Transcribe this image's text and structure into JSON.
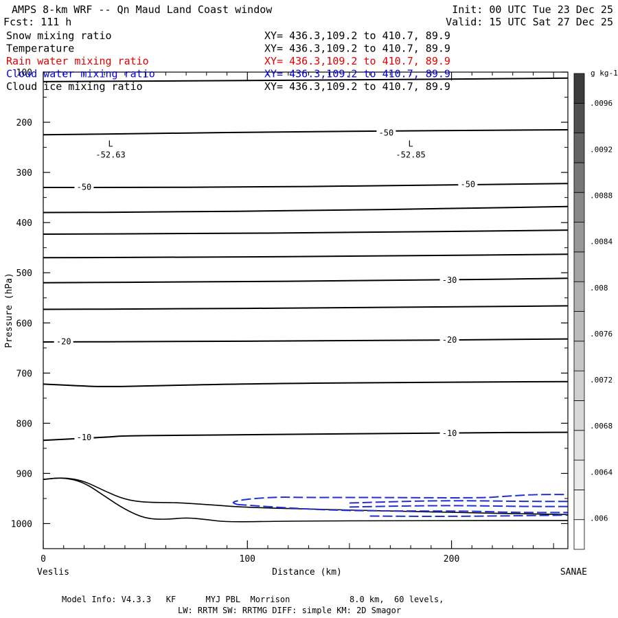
{
  "header": {
    "title": "AMPS 8-km WRF -- Qn Maud Land Coast window",
    "forecast": "Fcst:  111 h",
    "init": "Init: 00 UTC Tue 23 Dec 25",
    "valid": "Valid: 15 UTC Sat 27 Dec 25"
  },
  "fields": [
    {
      "name": "Snow mixing ratio",
      "xy": "XY= 436.3,109.2 to 410.7, 89.9",
      "color": "#000000"
    },
    {
      "name": "Temperature",
      "xy": "XY= 436.3,109.2 to 410.7, 89.9",
      "color": "#000000"
    },
    {
      "name": "Rain water mixing ratio",
      "xy": "XY= 436.3,109.2 to 410.7, 89.9",
      "color": "#e00000"
    },
    {
      "name": "Cloud water mixing ratio",
      "xy": "XY= 436.3,109.2 to 410.7, 89.9",
      "color": "#0000dd"
    },
    {
      "name": "Cloud ice mixing ratio",
      "xy": "XY= 436.3,109.2 to 410.7, 89.9",
      "color": "#000000"
    }
  ],
  "footer": {
    "line1": "Model Info: V4.3.3   KF      MYJ PBL  Morrison            8.0 km,  60 levels,",
    "line2": "LW: RRTM SW: RRTMG   DIFF: simple KM: 2D Smagor"
  },
  "chart_data": {
    "type": "contour",
    "xlabel": "Distance (km)",
    "ylabel": "Pressure (hPa)",
    "xlim": [
      0,
      257
    ],
    "ylim": [
      1050,
      100
    ],
    "x_ticks": [
      0,
      100,
      200
    ],
    "y_ticks": [
      100,
      200,
      300,
      400,
      500,
      600,
      700,
      800,
      900,
      1000
    ],
    "x_end_labels": {
      "left": "Veslis",
      "right": "SANAE"
    },
    "temperature_contours": [
      {
        "label": "",
        "points": [
          [
            0,
            119
          ],
          [
            100,
            117
          ],
          [
            200,
            114
          ],
          [
            257,
            112
          ]
        ]
      },
      {
        "label": "-50",
        "points": [
          [
            0,
            225
          ],
          [
            60,
            222
          ],
          [
            120,
            219
          ],
          [
            180,
            217
          ],
          [
            257,
            215
          ]
        ],
        "label_at": [
          168,
          221
        ]
      },
      {
        "label": "-50",
        "points": [
          [
            0,
            330
          ],
          [
            40,
            330
          ],
          [
            100,
            329
          ],
          [
            160,
            327
          ],
          [
            257,
            322
          ]
        ],
        "label_at": [
          20,
          329
        ],
        "label_at2": [
          208,
          324
        ]
      },
      {
        "label": "",
        "points": [
          [
            0,
            380
          ],
          [
            60,
            379
          ],
          [
            130,
            376
          ],
          [
            200,
            372
          ],
          [
            257,
            368
          ]
        ]
      },
      {
        "label": "",
        "points": [
          [
            0,
            423
          ],
          [
            70,
            422
          ],
          [
            150,
            420
          ],
          [
            257,
            415
          ]
        ]
      },
      {
        "label": "",
        "points": [
          [
            0,
            470
          ],
          [
            80,
            469
          ],
          [
            160,
            467
          ],
          [
            257,
            463
          ]
        ]
      },
      {
        "label": "-30",
        "points": [
          [
            0,
            520
          ],
          [
            80,
            518
          ],
          [
            160,
            516
          ],
          [
            257,
            511
          ]
        ],
        "label_at": [
          199,
          515
        ]
      },
      {
        "label": "",
        "points": [
          [
            0,
            573
          ],
          [
            60,
            572
          ],
          [
            140,
            570
          ],
          [
            257,
            566
          ]
        ]
      },
      {
        "label": "-20",
        "points": [
          [
            0,
            638
          ],
          [
            60,
            637
          ],
          [
            140,
            636
          ],
          [
            257,
            632
          ]
        ],
        "label_at": [
          10,
          637
        ],
        "label_at2": [
          199,
          634
        ]
      },
      {
        "label": "",
        "points": [
          [
            0,
            722
          ],
          [
            20,
            726
          ],
          [
            30,
            727
          ],
          [
            50,
            726
          ],
          [
            100,
            721
          ],
          [
            200,
            718
          ],
          [
            257,
            717
          ]
        ]
      },
      {
        "label": "-10",
        "points": [
          [
            0,
            834
          ],
          [
            30,
            828
          ],
          [
            40,
            825
          ],
          [
            70,
            824
          ],
          [
            100,
            823
          ],
          [
            200,
            819
          ],
          [
            257,
            818
          ]
        ],
        "label_at": [
          20,
          828
        ],
        "label_at2": [
          199,
          820
        ]
      }
    ],
    "terrain_lines": [
      {
        "points": [
          [
            0,
            912
          ],
          [
            10,
            908
          ],
          [
            20,
            915
          ],
          [
            30,
            935
          ],
          [
            40,
            952
          ],
          [
            50,
            958
          ],
          [
            65,
            958
          ],
          [
            80,
            962
          ],
          [
            100,
            968
          ],
          [
            140,
            972
          ],
          [
            200,
            978
          ],
          [
            257,
            982
          ]
        ]
      },
      {
        "points": [
          [
            0,
            912
          ],
          [
            10,
            908
          ],
          [
            20,
            918
          ],
          [
            30,
            945
          ],
          [
            40,
            972
          ],
          [
            50,
            990
          ],
          [
            60,
            992
          ],
          [
            70,
            988
          ],
          [
            80,
            992
          ],
          [
            90,
            997
          ],
          [
            120,
            995
          ],
          [
            180,
            994
          ],
          [
            257,
            994
          ]
        ]
      }
    ],
    "cloud_water_contours": [
      {
        "label": "",
        "points": [
          [
            95,
            962
          ],
          [
            92,
            957
          ],
          [
            100,
            951
          ],
          [
            115,
            947
          ],
          [
            125,
            948
          ],
          [
            165,
            948
          ],
          [
            215,
            949
          ],
          [
            225,
            946
          ],
          [
            240,
            942
          ],
          [
            257,
            942
          ]
        ]
      },
      {
        "label": "",
        "points": [
          [
            95,
            962
          ],
          [
            120,
            969
          ],
          [
            140,
            973
          ],
          [
            150,
            974
          ],
          [
            170,
            975
          ],
          [
            210,
            975
          ],
          [
            230,
            978
          ],
          [
            257,
            978
          ]
        ]
      },
      {
        "label": "",
        "points": [
          [
            150,
            959
          ],
          [
            175,
            956
          ],
          [
            200,
            954
          ],
          [
            240,
            956
          ],
          [
            257,
            956
          ]
        ]
      },
      {
        "label": "",
        "points": [
          [
            150,
            967
          ],
          [
            175,
            965
          ],
          [
            205,
            964
          ],
          [
            235,
            966
          ],
          [
            257,
            966
          ]
        ]
      },
      {
        "label": "",
        "points": [
          [
            160,
            985
          ],
          [
            200,
            986
          ],
          [
            257,
            983
          ]
        ]
      }
    ],
    "lows": [
      {
        "label": "L",
        "value": "-52.63",
        "x": 33,
        "p": 265
      },
      {
        "label": "L",
        "value": "-52.85",
        "x": 180,
        "p": 265
      }
    ],
    "colorbar": {
      "unit": "g kg-1",
      "labels": [
        ".006",
        ".0064",
        ".0068",
        ".0072",
        ".0076",
        ".008",
        ".0084",
        ".0088",
        ".0092",
        ".0096"
      ],
      "shades": [
        "#ffffff",
        "#f2f2f2",
        "#e9e9e9",
        "#e1e1e1",
        "#d8d8d8",
        "#cfcfcf",
        "#c6c6c6",
        "#bbbbbb",
        "#b0b0b0",
        "#a4a4a4",
        "#979797",
        "#888888",
        "#777777",
        "#646464",
        "#505050",
        "#3c3c3c"
      ]
    }
  }
}
